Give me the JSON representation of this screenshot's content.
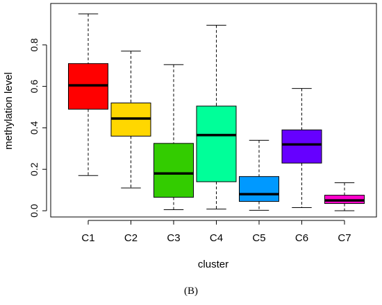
{
  "chart_data": {
    "type": "boxplot",
    "xlabel": "cluster",
    "ylabel": "methylation level",
    "ylim": [
      -0.03,
      1.0
    ],
    "yticks": [
      0.0,
      0.2,
      0.4,
      0.6,
      0.8
    ],
    "ytick_labels": [
      "0.0",
      "0.2",
      "0.4",
      "0.6",
      "0.8"
    ],
    "categories": [
      "C1",
      "C2",
      "C3",
      "C4",
      "C5",
      "C6",
      "C7"
    ],
    "boxes": [
      {
        "label": "C1",
        "min": 0.17,
        "q1": 0.49,
        "median": 0.605,
        "q3": 0.71,
        "max": 0.95,
        "color": "#ff0000"
      },
      {
        "label": "C2",
        "min": 0.11,
        "q1": 0.36,
        "median": 0.445,
        "q3": 0.52,
        "max": 0.77,
        "color": "#ffd700"
      },
      {
        "label": "C3",
        "min": 0.005,
        "q1": 0.065,
        "median": 0.18,
        "q3": 0.325,
        "max": 0.705,
        "color": "#33cc00"
      },
      {
        "label": "C4",
        "min": 0.008,
        "q1": 0.14,
        "median": 0.365,
        "q3": 0.505,
        "max": 0.895,
        "color": "#00ff99"
      },
      {
        "label": "C5",
        "min": 0.002,
        "q1": 0.045,
        "median": 0.08,
        "q3": 0.165,
        "max": 0.34,
        "color": "#0099ff"
      },
      {
        "label": "C6",
        "min": 0.015,
        "q1": 0.23,
        "median": 0.32,
        "q3": 0.39,
        "max": 0.59,
        "color": "#6600ff"
      },
      {
        "label": "C7",
        "min": 0.0,
        "q1": 0.035,
        "median": 0.05,
        "q3": 0.075,
        "max": 0.135,
        "color": "#ff00cc"
      }
    ]
  },
  "panel_label": "(B)"
}
